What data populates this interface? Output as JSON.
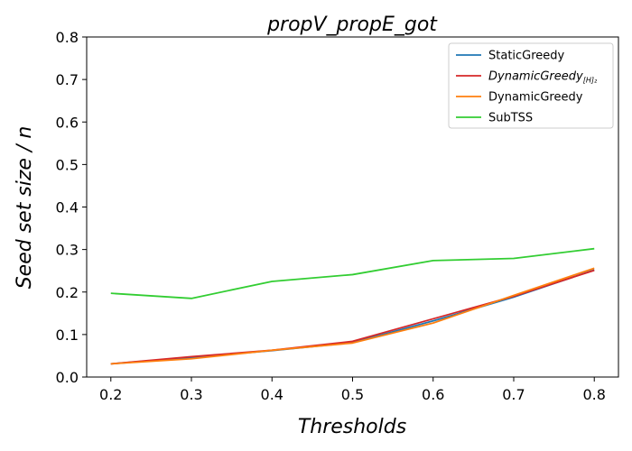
{
  "chart_data": {
    "type": "line",
    "title": "propV_propE_got",
    "xlabel": "Thresholds",
    "ylabel": "Seed set size / n",
    "x": [
      0.2,
      0.3,
      0.4,
      0.5,
      0.6,
      0.7,
      0.8
    ],
    "xlim": [
      0.17,
      0.83
    ],
    "ylim": [
      0.0,
      0.8
    ],
    "xticks": [
      "0.2",
      "0.3",
      "0.4",
      "0.5",
      "0.6",
      "0.7",
      "0.8"
    ],
    "yticks": [
      "0.0",
      "0.1",
      "0.2",
      "0.3",
      "0.4",
      "0.5",
      "0.6",
      "0.7",
      "0.8"
    ],
    "legend_position": "top-right",
    "grid": false,
    "series": [
      {
        "name": "StaticGreedy",
        "color": "#1f77b4",
        "values": [
          0.031,
          0.046,
          0.062,
          0.081,
          0.132,
          0.188,
          0.252
        ]
      },
      {
        "name": "DynamicGreedy",
        "name_subscript": "[H]₂",
        "italic": true,
        "color": "#d62728",
        "values": [
          0.031,
          0.048,
          0.063,
          0.084,
          0.137,
          0.19,
          0.251
        ]
      },
      {
        "name": "DynamicGreedy",
        "color": "#ff7f0e",
        "values": [
          0.031,
          0.043,
          0.063,
          0.08,
          0.127,
          0.192,
          0.256
        ]
      },
      {
        "name": "SubTSS",
        "color": "#32cd32",
        "values": [
          0.197,
          0.185,
          0.225,
          0.241,
          0.274,
          0.279,
          0.302
        ]
      }
    ]
  }
}
